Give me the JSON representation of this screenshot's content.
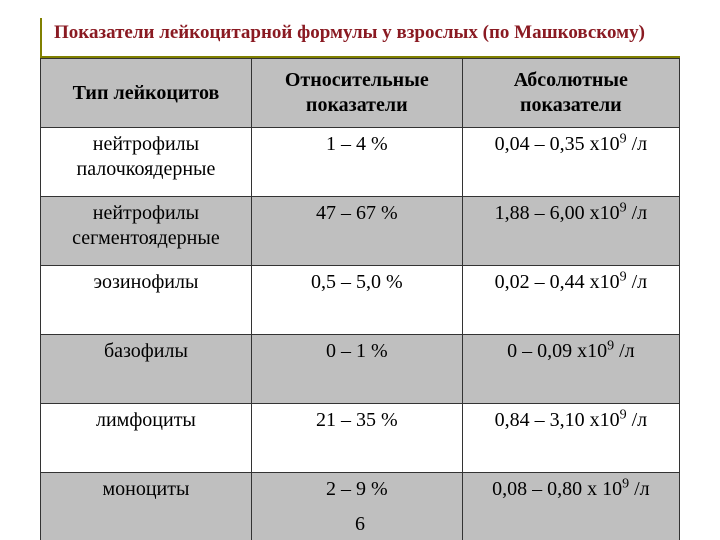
{
  "colors": {
    "title_text": "#8a1a22",
    "title_rule": "#808000",
    "header_bg": "#bfbfbf",
    "row_alt_bg": "#bfbfbf",
    "row_bg": "#ffffff",
    "border": "#333333",
    "text": "#000000"
  },
  "typography": {
    "family": "Times New Roman",
    "title_size_pt": 19,
    "cell_size_pt": 20,
    "title_weight": "bold",
    "header_weight": "bold"
  },
  "title": "Показатели лейкоцитарной формулы у взрослых (по Машковскому)",
  "table": {
    "type": "table",
    "columns": [
      "Тип лейкоцитов",
      "Относительные показатели",
      "Абсолютные показатели"
    ],
    "column_align": [
      "center",
      "center",
      "center"
    ],
    "column_widths_pct": [
      33,
      33,
      34
    ],
    "rows": [
      {
        "zebra": "odd",
        "cells": [
          "нейтрофилы палочкоядерные",
          "1 – 4 %",
          "0,04 – 0,35 х10<sup>9</sup> /л"
        ]
      },
      {
        "zebra": "even",
        "cells": [
          "нейтрофилы сегментоядерные",
          "47 – 67 %",
          "1,88 – 6,00 х10<sup>9</sup> /л"
        ]
      },
      {
        "zebra": "odd",
        "cells": [
          "эозинофилы",
          "0,5 – 5,0 %",
          "0,02 – 0,44 х10<sup>9</sup> /л"
        ]
      },
      {
        "zebra": "even",
        "cells": [
          "базофилы",
          "0 – 1 %",
          "0 – 0,09 х10<sup>9</sup> /л"
        ]
      },
      {
        "zebra": "odd",
        "cells": [
          "лимфоциты",
          "21 – 35 %",
          "0,84 – 3,10 х10<sup>9</sup> /л"
        ]
      },
      {
        "zebra": "even",
        "cells": [
          "моноциты",
          "2 – 9 %",
          "0,08 – 0,80 х 10<sup>9</sup> /л"
        ]
      }
    ]
  },
  "page_number": "6"
}
